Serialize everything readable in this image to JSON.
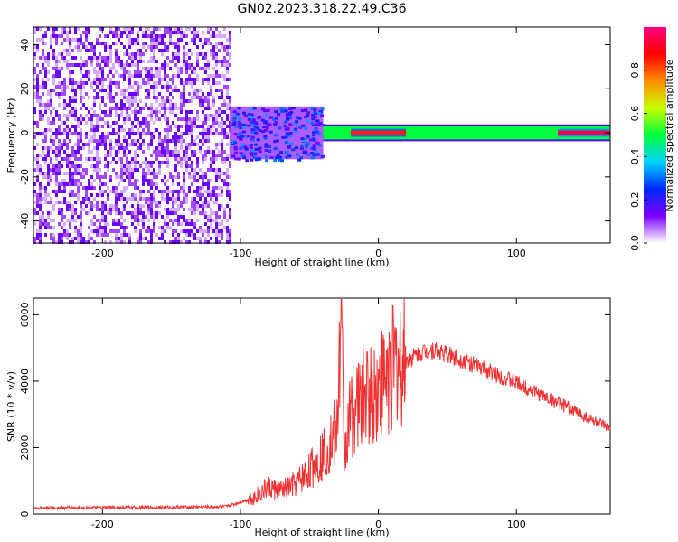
{
  "title": "GN02.2023.318.22.49.C36",
  "chart_data": [
    {
      "type": "heatmap",
      "title": "",
      "xlabel": "Height of straight line (km)",
      "ylabel": "Frequency (Hz)",
      "xlim": [
        -250,
        168
      ],
      "ylim": [
        -50,
        48
      ],
      "xticks": [
        -200,
        -100,
        0,
        100
      ],
      "yticks": [
        -40,
        -20,
        0,
        20,
        40
      ],
      "colorbar": {
        "label": "Normalized spectral amplitude",
        "range": [
          0,
          1
        ],
        "ticks": [
          0.0,
          0.2,
          0.4,
          0.6,
          0.8
        ],
        "tick_labels": [
          "0.0",
          "0.2",
          "0.4",
          "0.6",
          "0.8"
        ],
        "colors": [
          "#ffffff",
          "#7b00ff",
          "#0028ff",
          "#00d2ff",
          "#00ff3c",
          "#c8ff00",
          "#ff8c00",
          "#ff0000",
          "#ff0080"
        ]
      },
      "regions": [
        {
          "x": [
            -250,
            -108
          ],
          "freq": [
            -50,
            48
          ],
          "amplitude": 0.1,
          "description_level": "broadband noise"
        },
        {
          "x": [
            -108,
            -40
          ],
          "freq": [
            -12,
            12
          ],
          "amplitude": 0.25
        },
        {
          "x": [
            -40,
            168
          ],
          "freq": [
            -3,
            3
          ],
          "amplitude": 0.5
        },
        {
          "x": [
            -20,
            20
          ],
          "freq": [
            -1,
            1
          ],
          "amplitude": 0.85
        },
        {
          "x": [
            130,
            168
          ],
          "freq": [
            -1,
            1
          ],
          "amplitude": 0.95
        }
      ]
    },
    {
      "type": "line",
      "title": "",
      "xlabel": "Height of straight line (km)",
      "ylabel": "SNR (10 * v/v)",
      "xlim": [
        -250,
        168
      ],
      "ylim": [
        0,
        6500
      ],
      "xticks": [
        -200,
        -100,
        0,
        100
      ],
      "yticks": [
        0,
        2000,
        4000,
        6000
      ],
      "color": "#f03232",
      "x": [
        -250,
        -200,
        -150,
        -110,
        -90,
        -80,
        -70,
        -60,
        -50,
        -40,
        -30,
        -27,
        -25,
        -20,
        -10,
        0,
        10,
        20,
        30,
        40,
        50,
        60,
        80,
        100,
        120,
        140,
        168
      ],
      "y": [
        180,
        190,
        200,
        220,
        500,
        800,
        700,
        900,
        1300,
        1800,
        2500,
        6400,
        1800,
        3000,
        3500,
        3800,
        4400,
        4600,
        4850,
        4950,
        4800,
        4650,
        4300,
        3950,
        3550,
        3150,
        2550
      ]
    }
  ]
}
